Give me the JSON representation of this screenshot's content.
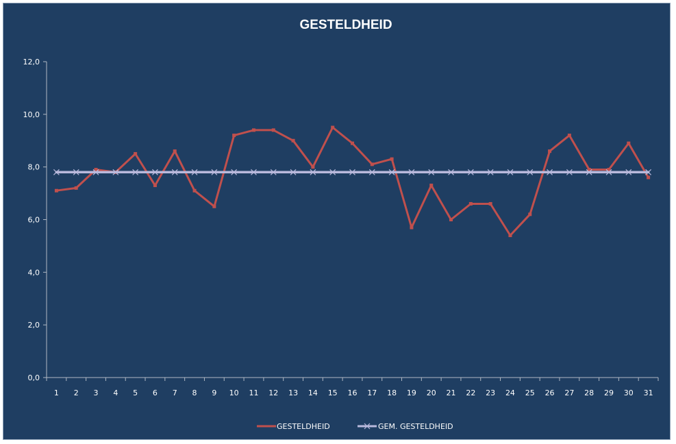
{
  "chart_data": {
    "type": "line",
    "title": "GESTELDHEID",
    "xlabel": "",
    "ylabel": "",
    "categories": [
      "1",
      "2",
      "3",
      "4",
      "5",
      "6",
      "7",
      "8",
      "9",
      "10",
      "11",
      "12",
      "13",
      "14",
      "15",
      "16",
      "17",
      "18",
      "19",
      "20",
      "21",
      "22",
      "23",
      "24",
      "25",
      "26",
      "27",
      "28",
      "29",
      "30",
      "31"
    ],
    "y_ticks": [
      "0,0",
      "2,0",
      "4,0",
      "6,0",
      "8,0",
      "10,0",
      "12,0"
    ],
    "ylim": [
      0,
      12
    ],
    "grid": false,
    "legend_position": "bottom",
    "series": [
      {
        "name": "GESTELDHEID",
        "color": "#c0504d",
        "values": [
          7.1,
          7.2,
          7.9,
          7.8,
          8.5,
          7.3,
          8.6,
          7.1,
          6.5,
          9.2,
          9.4,
          9.4,
          9.0,
          8.0,
          9.5,
          8.9,
          8.1,
          8.3,
          5.7,
          7.3,
          6.0,
          6.6,
          6.6,
          5.4,
          6.2,
          8.6,
          9.2,
          7.9,
          7.9,
          8.9,
          7.6
        ]
      },
      {
        "name": "GEM. GESTELDHEID",
        "color": "#b9b9dc",
        "values": [
          7.8,
          7.8,
          7.8,
          7.8,
          7.8,
          7.8,
          7.8,
          7.8,
          7.8,
          7.8,
          7.8,
          7.8,
          7.8,
          7.8,
          7.8,
          7.8,
          7.8,
          7.8,
          7.8,
          7.8,
          7.8,
          7.8,
          7.8,
          7.8,
          7.8,
          7.8,
          7.8,
          7.8,
          7.8,
          7.8,
          7.8
        ]
      }
    ]
  }
}
